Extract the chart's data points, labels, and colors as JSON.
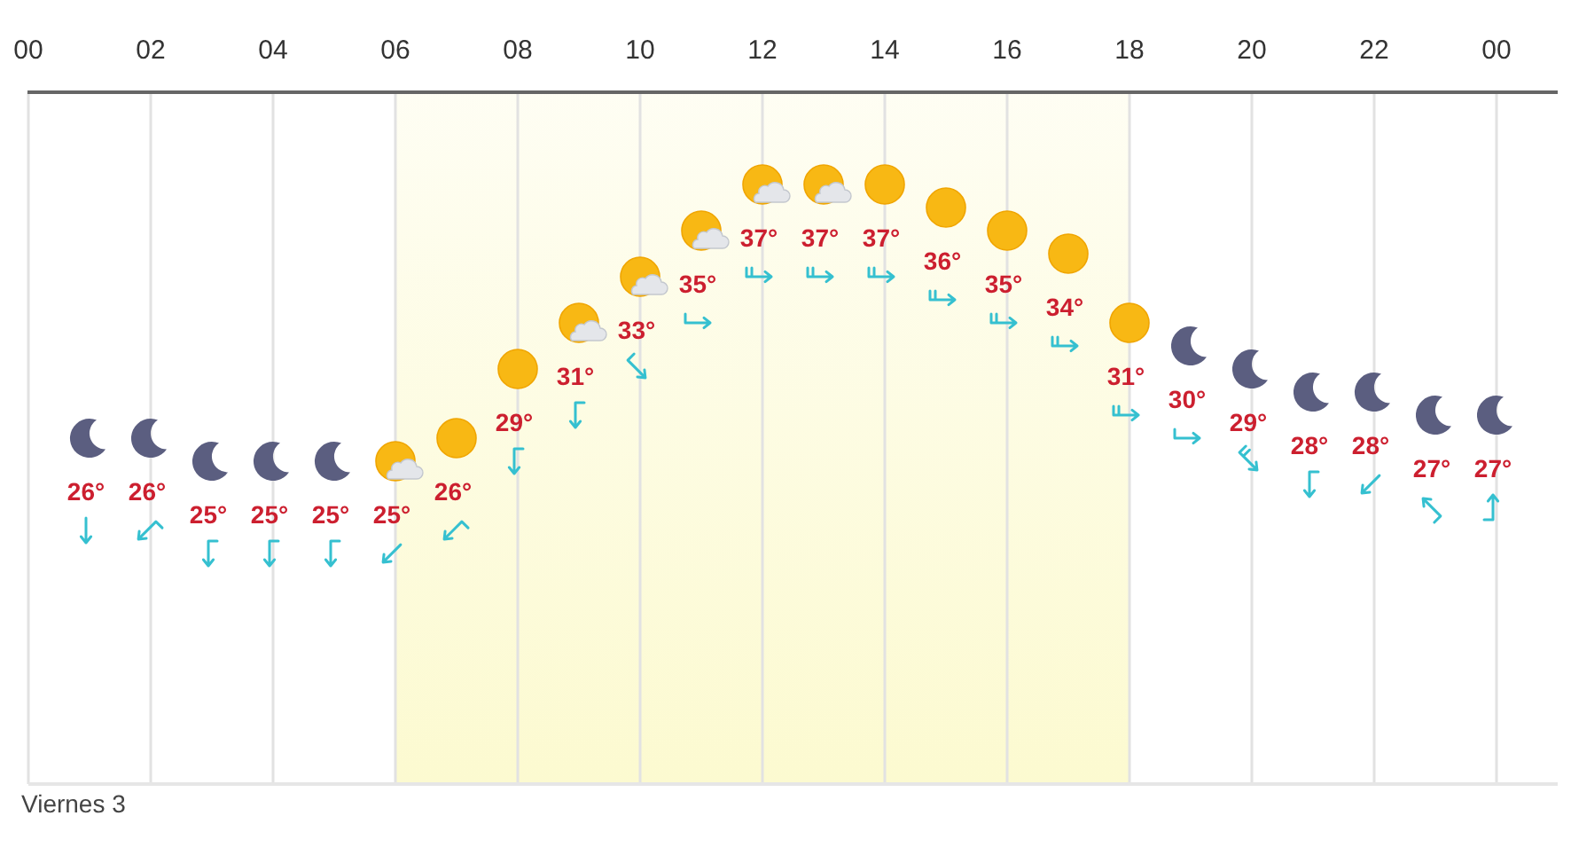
{
  "chart_data": {
    "type": "scatter",
    "xlim": [
      0,
      25
    ],
    "xticks": [
      {
        "value": 0,
        "label": "00"
      },
      {
        "value": 2,
        "label": "02"
      },
      {
        "value": 4,
        "label": "04"
      },
      {
        "value": 6,
        "label": "06"
      },
      {
        "value": 8,
        "label": "08"
      },
      10,
      12,
      14,
      16,
      18,
      20,
      22,
      {
        "value": 24,
        "label": "00"
      }
    ],
    "ylim": [
      11,
      41
    ],
    "tick_labels": "x",
    "grid": "x",
    "bands": [
      {
        "axis": "x",
        "from": 6,
        "to": 18,
        "color": "#fcfad0"
      }
    ],
    "annotations": [
      "Viernes 3"
    ],
    "series": [
      {
        "color": "#5b5e80",
        "x": [
          1,
          2,
          3,
          4,
          5,
          19,
          20,
          21,
          22,
          23,
          24
        ],
        "values": [
          26,
          26,
          25,
          25,
          25,
          30,
          29,
          28,
          28,
          27,
          27
        ],
        "value_labels": [
          "26°",
          "26°",
          "25°",
          "25°",
          "25°",
          "30°",
          "29°",
          "28°",
          "28°",
          "27°",
          "27°"
        ]
      },
      {
        "color": "#f8b814",
        "x": [
          7,
          8,
          14,
          15,
          16,
          17,
          18
        ],
        "values": [
          26,
          29,
          37,
          36,
          35,
          34,
          31
        ],
        "value_labels": [
          "26°",
          "29°",
          "37°",
          "36°",
          "35°",
          "34°",
          "31°"
        ]
      },
      {
        "color": "#f8b814",
        "x": [
          6,
          9,
          10,
          11,
          12,
          13
        ],
        "values": [
          25,
          31,
          33,
          35,
          37,
          37
        ],
        "value_labels": [
          "25°",
          "31°",
          "33°",
          "35°",
          "37°",
          "37°"
        ]
      }
    ]
  }
}
